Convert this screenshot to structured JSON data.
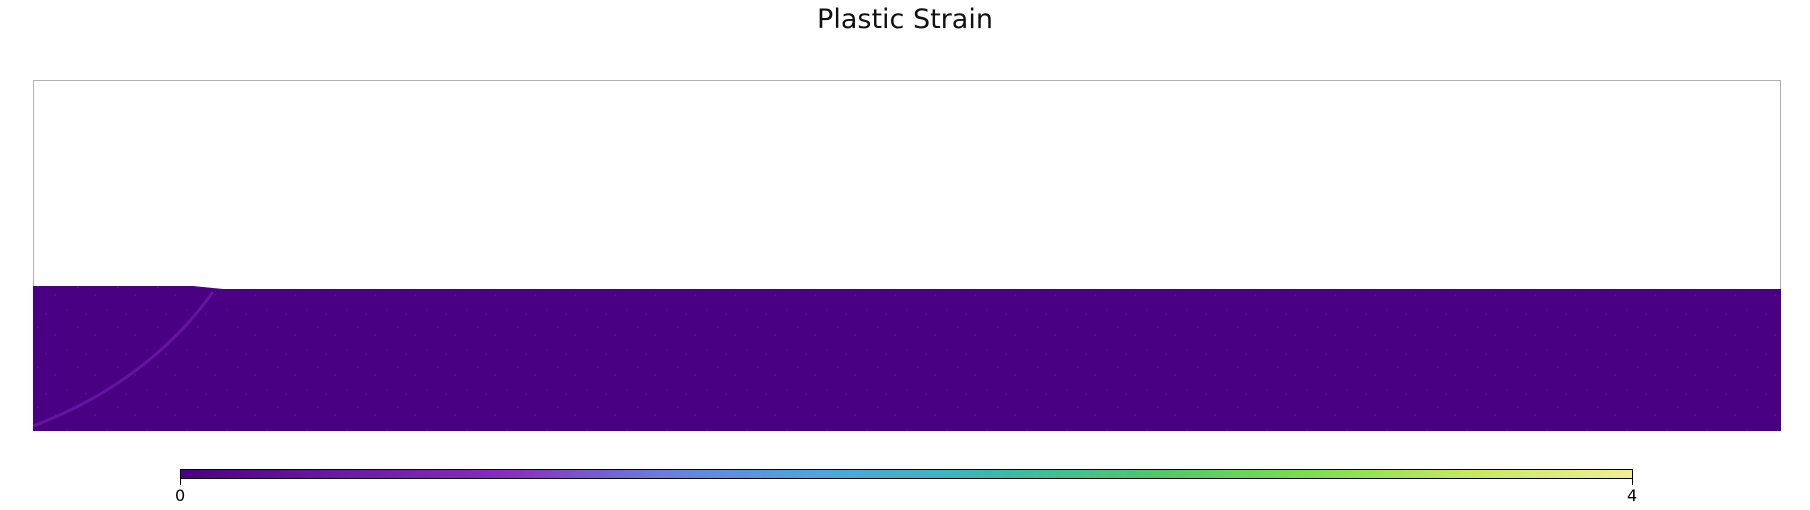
{
  "chart_data": {
    "type": "heatmap",
    "title": "Plastic Strain",
    "xlabel": "",
    "ylabel": "",
    "colorbar": {
      "min": 0,
      "max": 4,
      "tick_labels": [
        "0",
        "4"
      ],
      "colormap": "plasma-like purple-blue-green-yellow",
      "colors": [
        "#4a0083",
        "#6a1aa8",
        "#8a2ac0",
        "#6a7fe0",
        "#4aa8e0",
        "#3ab8b0",
        "#4ac870",
        "#7ae04a",
        "#c8e860",
        "#f0f090"
      ]
    },
    "field_summary": {
      "dominant_value": 0,
      "dominant_color": "#4a0083",
      "shear_band_color": "#6a1aa8",
      "grid": false,
      "legend": "bottom colorbar"
    }
  }
}
